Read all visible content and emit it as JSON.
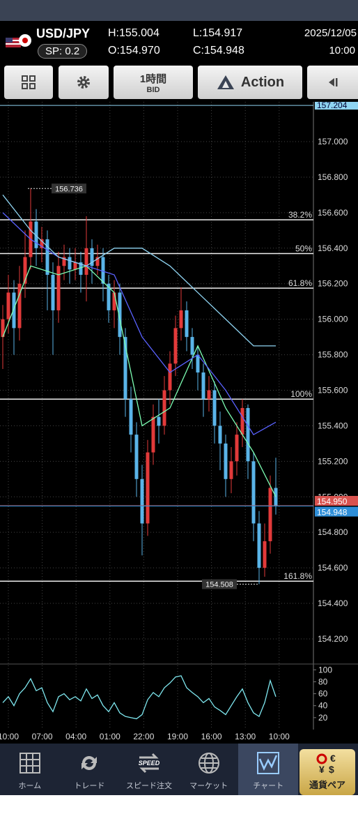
{
  "header": {
    "pair": "USD/JPY",
    "spread": "SP: 0.2",
    "high": "H:155.004",
    "low": "L:154.917",
    "open": "O:154.970",
    "close": "C:154.948",
    "date": "2025/12/05",
    "time": "10:00"
  },
  "toolbar": {
    "timeframe": "1時間",
    "price_type": "BID",
    "action": "Action"
  },
  "chart": {
    "type": "candlestick",
    "ylim": [
      154.082,
      157.224
    ],
    "yticks": [
      {
        "value": 157,
        "label": "157.000"
      },
      {
        "value": 156.8,
        "label": "156.800"
      },
      {
        "value": 156.6,
        "label": "156.600"
      },
      {
        "value": 156.4,
        "label": "156.400"
      },
      {
        "value": 156.2,
        "label": "156.200"
      },
      {
        "value": 156,
        "label": "156.000"
      },
      {
        "value": 155.8,
        "label": "155.800"
      },
      {
        "value": 155.6,
        "label": "155.600"
      },
      {
        "value": 155.4,
        "label": "155.400"
      },
      {
        "value": 155.2,
        "label": "155.200"
      },
      {
        "value": 155,
        "label": "155.000"
      },
      {
        "value": 154.8,
        "label": "154.800"
      },
      {
        "value": 154.6,
        "label": "154.600"
      },
      {
        "value": 154.4,
        "label": "154.400"
      },
      {
        "value": 154.2,
        "label": "154.200"
      }
    ],
    "top_price": {
      "value": 157.204,
      "label": "157.204"
    },
    "bid_line": {
      "value": 154.95,
      "label": "154.950",
      "color": "#d9534f"
    },
    "close_line": {
      "value": 154.948,
      "label": "154.948",
      "color": "#2f8fd8"
    },
    "high_marker": {
      "value": 156.736,
      "label": "156.736"
    },
    "low_marker": {
      "value": 154.508,
      "label": "154.508"
    },
    "fib_levels": [
      {
        "value": 156.56,
        "label": "38.2%"
      },
      {
        "value": 156.37,
        "label": "50%"
      },
      {
        "value": 156.175,
        "label": "61.8%"
      },
      {
        "value": 155.55,
        "label": "100%"
      },
      {
        "value": 154.525,
        "label": "161.8%"
      }
    ],
    "up_color": "#e23a3a",
    "down_color": "#5ab4e8",
    "candles": [
      [
        155.9,
        156.08,
        155.72,
        156.0
      ],
      [
        156.0,
        156.25,
        155.92,
        156.15
      ],
      [
        156.15,
        156.22,
        155.8,
        155.95
      ],
      [
        155.95,
        156.3,
        155.88,
        156.2
      ],
      [
        156.2,
        156.5,
        156.12,
        156.35
      ],
      [
        156.35,
        156.736,
        156.28,
        156.55
      ],
      [
        156.55,
        156.62,
        156.3,
        156.4
      ],
      [
        156.4,
        156.52,
        156.32,
        156.45
      ],
      [
        156.45,
        156.5,
        156.05,
        156.25
      ],
      [
        156.25,
        156.32,
        155.8,
        156.05
      ],
      [
        156.05,
        156.38,
        155.98,
        156.3
      ],
      [
        156.3,
        156.42,
        156.22,
        156.35
      ],
      [
        156.35,
        156.4,
        156.2,
        156.28
      ],
      [
        156.28,
        156.4,
        156.22,
        156.32
      ],
      [
        156.32,
        156.38,
        156.15,
        156.25
      ],
      [
        156.25,
        156.58,
        156.1,
        156.4
      ],
      [
        156.4,
        156.45,
        156.2,
        156.3
      ],
      [
        156.3,
        156.42,
        156.25,
        156.35
      ],
      [
        156.35,
        156.4,
        156.1,
        156.2
      ],
      [
        156.2,
        156.25,
        155.98,
        156.05
      ],
      [
        156.05,
        156.22,
        155.95,
        156.15
      ],
      [
        156.15,
        156.2,
        155.8,
        155.9
      ],
      [
        155.9,
        155.95,
        155.45,
        155.55
      ],
      [
        155.55,
        155.62,
        155.25,
        155.35
      ],
      [
        155.35,
        155.42,
        155.0,
        155.1
      ],
      [
        155.1,
        155.18,
        154.67,
        154.85
      ],
      [
        154.85,
        155.32,
        154.78,
        155.25
      ],
      [
        155.25,
        155.52,
        155.18,
        155.45
      ],
      [
        155.45,
        155.55,
        155.3,
        155.4
      ],
      [
        155.4,
        155.68,
        155.35,
        155.6
      ],
      [
        155.6,
        155.82,
        155.52,
        155.75
      ],
      [
        155.75,
        156.02,
        155.68,
        155.95
      ],
      [
        155.95,
        156.18,
        155.88,
        156.05
      ],
      [
        156.05,
        156.1,
        155.82,
        155.9
      ],
      [
        155.9,
        155.95,
        155.72,
        155.8
      ],
      [
        155.8,
        155.85,
        155.6,
        155.7
      ],
      [
        155.7,
        155.75,
        155.45,
        155.55
      ],
      [
        155.55,
        155.68,
        155.48,
        155.6
      ],
      [
        155.6,
        155.65,
        155.3,
        155.4
      ],
      [
        155.4,
        155.48,
        155.15,
        155.3
      ],
      [
        155.3,
        155.35,
        155.0,
        155.1
      ],
      [
        155.1,
        155.28,
        155.02,
        155.2
      ],
      [
        155.2,
        155.42,
        155.12,
        155.35
      ],
      [
        155.35,
        155.55,
        155.28,
        155.5
      ],
      [
        155.5,
        155.52,
        155.1,
        155.2
      ],
      [
        155.2,
        155.25,
        154.75,
        154.85
      ],
      [
        154.85,
        154.92,
        154.508,
        154.6
      ],
      [
        154.6,
        154.85,
        154.55,
        154.75
      ],
      [
        154.75,
        155.12,
        154.68,
        155.05
      ],
      [
        155.05,
        155.22,
        154.9,
        154.95
      ]
    ],
    "ma_index": [
      0,
      5,
      10,
      15,
      20,
      25,
      30,
      35,
      40,
      45,
      49
    ],
    "moving_averages": [
      {
        "color": "#7dffb4",
        "values": [
          155.9,
          156.3,
          156.25,
          156.3,
          156.15,
          155.4,
          155.5,
          155.85,
          155.5,
          155.25,
          155.0
        ]
      },
      {
        "color": "#5a62ff",
        "values": [
          156.6,
          156.45,
          156.35,
          156.3,
          156.25,
          155.9,
          155.7,
          155.8,
          155.6,
          155.35,
          155.42
        ]
      },
      {
        "color": "#8fd4f2",
        "values": [
          156.7,
          156.5,
          156.35,
          156.3,
          156.4,
          156.4,
          156.3,
          156.15,
          156.0,
          155.85,
          155.85
        ]
      }
    ],
    "x_labels": [
      "10:00",
      "07:00",
      "04:00",
      "01:00",
      "22:00",
      "19:00",
      "16:00",
      "13:00",
      "10:00"
    ],
    "rsi": {
      "color": "#7fe8f0",
      "ylim": [
        0,
        105
      ],
      "yticks": [
        20,
        40,
        60,
        80,
        100
      ],
      "values": [
        45,
        55,
        40,
        60,
        70,
        85,
        65,
        70,
        45,
        30,
        55,
        60,
        50,
        55,
        48,
        68,
        52,
        58,
        40,
        30,
        45,
        28,
        22,
        20,
        18,
        25,
        50,
        62,
        55,
        70,
        78,
        88,
        90,
        70,
        62,
        55,
        45,
        52,
        38,
        32,
        25,
        40,
        55,
        68,
        45,
        28,
        22,
        45,
        82,
        55
      ]
    }
  },
  "nav": [
    {
      "label": "ホーム"
    },
    {
      "label": "トレード"
    },
    {
      "label": "スピード注文"
    },
    {
      "label": "マーケット"
    },
    {
      "label": "チャート"
    },
    {
      "label": "通貨ペア"
    }
  ]
}
